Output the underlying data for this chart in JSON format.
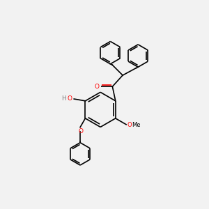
{
  "bg_color": "#f2f2f2",
  "line_color": "#000000",
  "o_color": "#ff0000",
  "h_color": "#808080",
  "bond_lw": 1.2,
  "figsize": [
    3.0,
    3.0
  ],
  "dpi": 100,
  "xlim": [
    0,
    10
  ],
  "ylim": [
    0,
    10
  ]
}
